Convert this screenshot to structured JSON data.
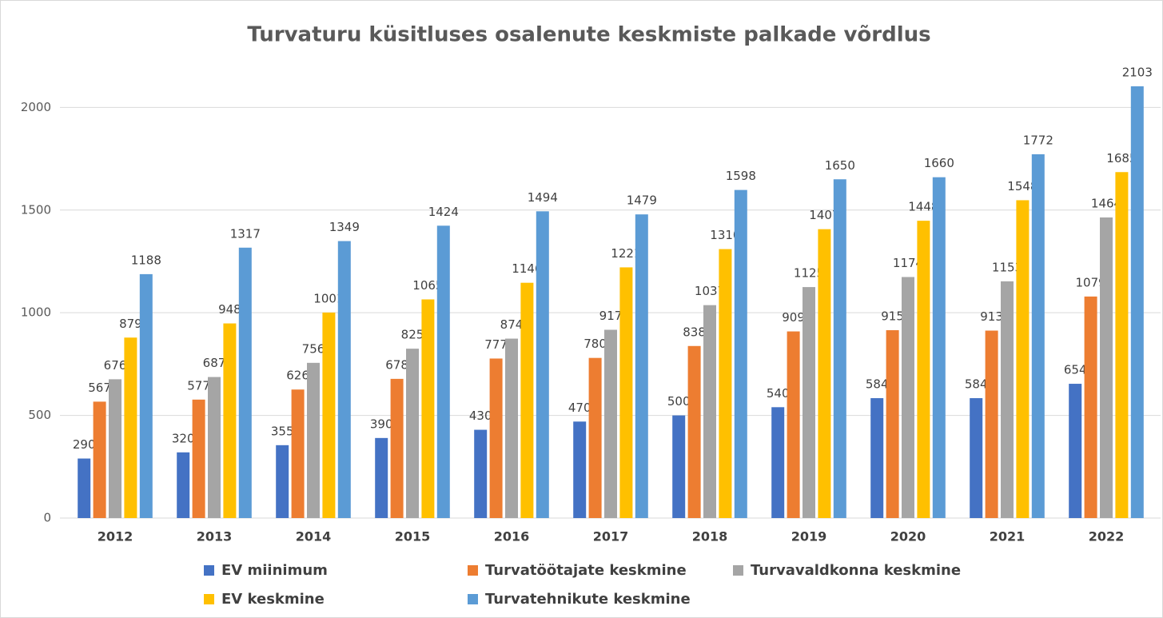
{
  "chart_data": {
    "type": "bar",
    "title": "Turvaturu küsitluses osalenute keskmiste palkade võrdlus",
    "categories": [
      "2012",
      "2013",
      "2014",
      "2015",
      "2016",
      "2017",
      "2018",
      "2019",
      "2020",
      "2021",
      "2022"
    ],
    "series": [
      {
        "name": "EV miinimum",
        "color": "#4472c4",
        "values": [
          290,
          320,
          355,
          390,
          430,
          470,
          500,
          540,
          584,
          584,
          654
        ]
      },
      {
        "name": "Turvatöötajate keskmine",
        "color": "#ed7d31",
        "values": [
          567,
          577,
          626,
          678,
          777,
          780,
          838,
          909,
          915,
          913,
          1079
        ]
      },
      {
        "name": "Turvavaldkonna keskmine",
        "color": "#a5a5a5",
        "values": [
          676,
          687,
          756,
          825,
          874,
          917,
          1037,
          1125,
          1174,
          1153,
          1464
        ]
      },
      {
        "name": "EV keskmine",
        "color": "#ffc000",
        "values": [
          879,
          948,
          1001,
          1065,
          1146,
          1221,
          1310,
          1407,
          1448,
          1548,
          1685
        ]
      },
      {
        "name": "Turvatehnikute keskmine",
        "color": "#5b9bd5",
        "values": [
          1188,
          1317,
          1349,
          1424,
          1494,
          1479,
          1598,
          1650,
          1660,
          1772,
          2103
        ]
      }
    ],
    "ylim": [
      0,
      2200
    ],
    "yticks": [
      0,
      500,
      1000,
      1500,
      2000
    ],
    "grid": true,
    "legend": "bottom"
  }
}
